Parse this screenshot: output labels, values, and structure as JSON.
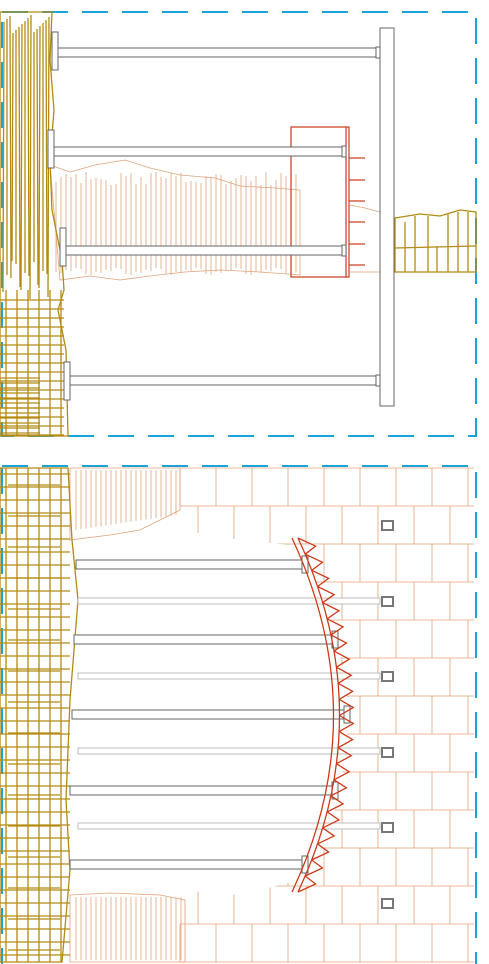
{
  "diagram": {
    "description_free": true,
    "panels": [
      {
        "id": "section",
        "boundary_style": "dashed"
      },
      {
        "id": "plan",
        "boundary_style": "dashed"
      }
    ],
    "colors": {
      "boundary": "#1aa3d9",
      "rock": "#b38a12",
      "soil": "#e0a37a",
      "structure": "#cc3a1a",
      "strut": "#666666",
      "strut_light": "#bdbdbd",
      "background": "#ffffff"
    }
  }
}
